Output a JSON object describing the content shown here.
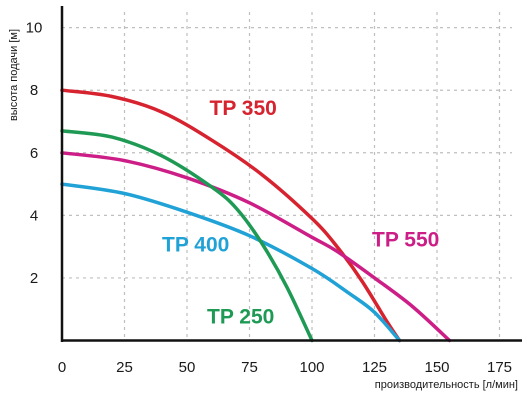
{
  "chart_data": {
    "type": "line",
    "xlabel": "производительность [л/мин]",
    "ylabel": "высота подачи [м]",
    "xlim": [
      0,
      180
    ],
    "ylim": [
      0,
      10.5
    ],
    "x_ticks": [
      0,
      25,
      50,
      75,
      100,
      125,
      150,
      175
    ],
    "y_ticks": [
      2,
      4,
      6,
      8,
      10
    ],
    "grid": true,
    "series": [
      {
        "name": "TP 350",
        "color": "#d6232f",
        "x": [
          0,
          20,
          40,
          60,
          80,
          100,
          110,
          120,
          130,
          135
        ],
        "y": [
          8.0,
          7.8,
          7.3,
          6.4,
          5.3,
          3.9,
          3.0,
          1.9,
          0.6,
          0.0
        ]
      },
      {
        "name": "TP 550",
        "color": "#cc1e86",
        "x": [
          0,
          25,
          50,
          75,
          100,
          110,
          125,
          140,
          155
        ],
        "y": [
          6.0,
          5.75,
          5.2,
          4.4,
          3.3,
          2.85,
          2.0,
          1.1,
          0.0
        ]
      },
      {
        "name": "TP 400",
        "color": "#21a2d6",
        "x": [
          0,
          25,
          50,
          75,
          100,
          115,
          125,
          135
        ],
        "y": [
          5.0,
          4.7,
          4.1,
          3.35,
          2.3,
          1.5,
          0.9,
          0.0
        ]
      },
      {
        "name": "TP 250",
        "color": "#1f9a55",
        "x": [
          0,
          20,
          40,
          60,
          70,
          80,
          90,
          100
        ],
        "y": [
          6.7,
          6.5,
          5.9,
          4.9,
          4.2,
          3.1,
          1.7,
          0.0
        ]
      }
    ]
  }
}
